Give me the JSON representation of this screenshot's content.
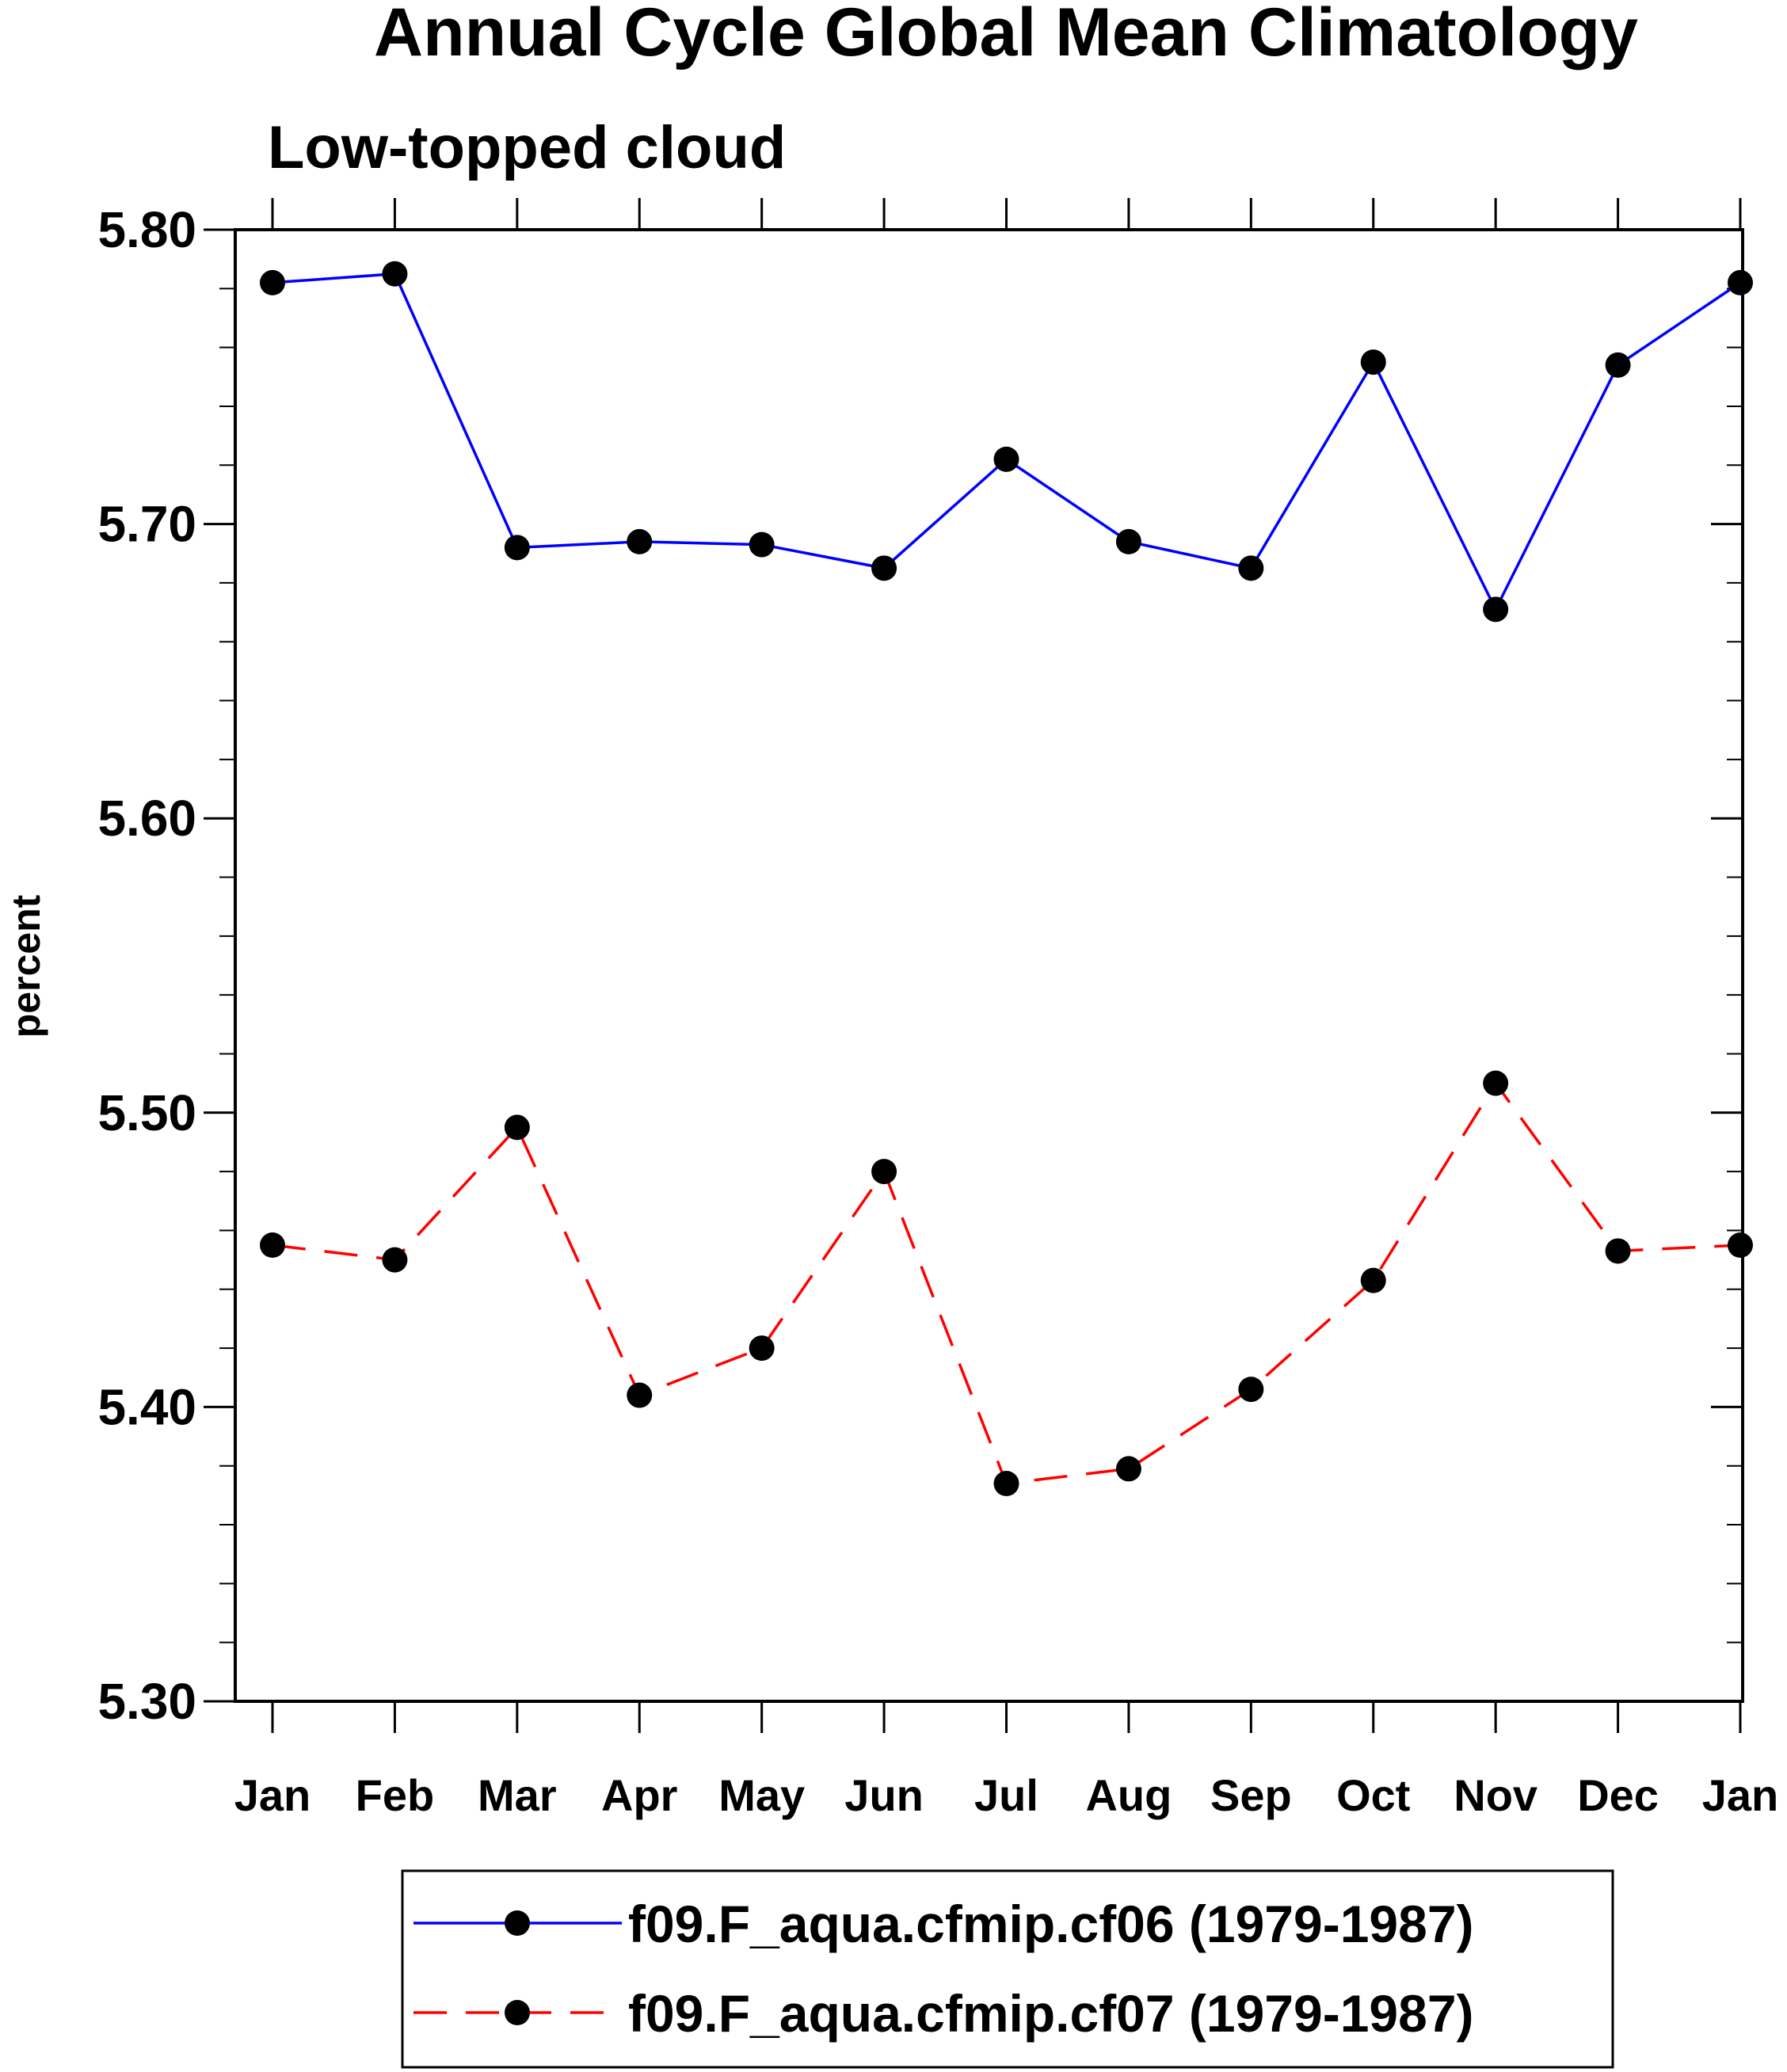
{
  "chart_data": {
    "type": "line",
    "title": "Annual Cycle Global Mean Climatology",
    "subtitle": "Low-topped cloud",
    "xlabel": "",
    "ylabel": "percent",
    "categories": [
      "Jan",
      "Feb",
      "Mar",
      "Apr",
      "May",
      "Jun",
      "Jul",
      "Aug",
      "Sep",
      "Oct",
      "Nov",
      "Dec",
      "Jan"
    ],
    "ylim": [
      5.3,
      5.8
    ],
    "yticks": [
      5.3,
      5.4,
      5.5,
      5.6,
      5.7,
      5.8
    ],
    "ytick_labels": [
      "5.30",
      "5.40",
      "5.50",
      "5.60",
      "5.70",
      "5.80"
    ],
    "grid": false,
    "legend_position": "bottom",
    "series": [
      {
        "name": "f09.F_aqua.cfmip.cf06 (1979-1987)",
        "color": "#0000ff",
        "line_style": "solid",
        "marker": "filled-circle",
        "values": [
          5.782,
          5.785,
          5.692,
          5.694,
          5.693,
          5.685,
          5.722,
          5.694,
          5.685,
          5.755,
          5.671,
          5.754,
          5.782
        ]
      },
      {
        "name": "f09.F_aqua.cfmip.cf07 (1979-1987)",
        "color": "#ff0000",
        "line_style": "dashed",
        "marker": "filled-circle",
        "values": [
          5.455,
          5.45,
          5.495,
          5.404,
          5.42,
          5.48,
          5.374,
          5.379,
          5.406,
          5.443,
          5.51,
          5.453,
          5.455
        ]
      }
    ]
  }
}
